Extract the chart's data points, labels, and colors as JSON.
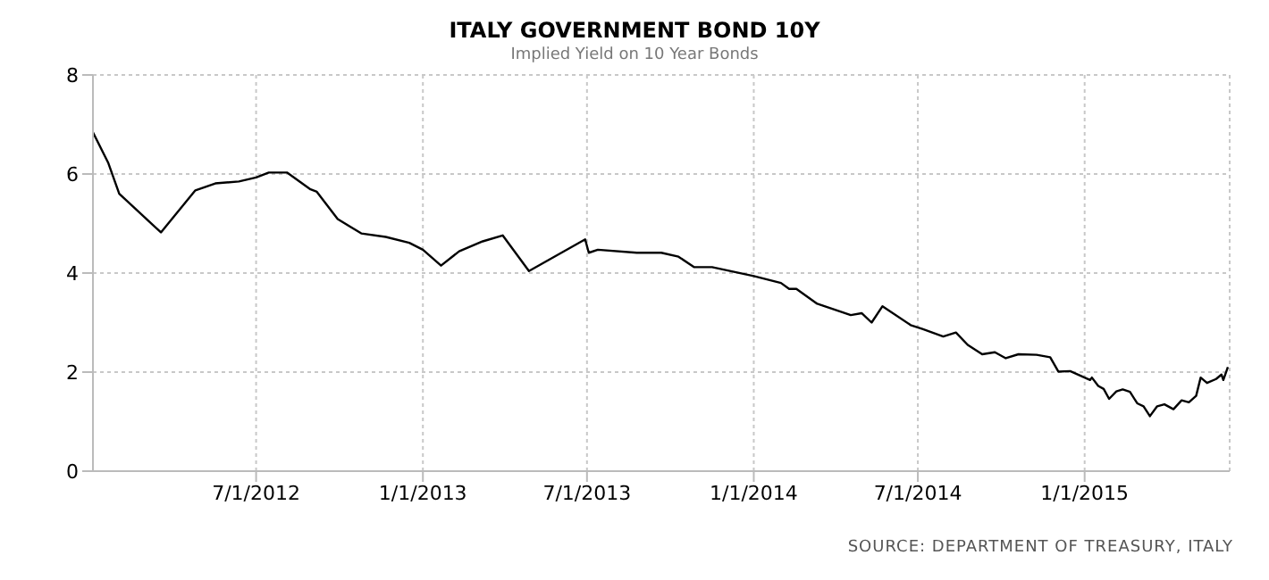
{
  "chart_data": {
    "type": "line",
    "title": "ITALY GOVERNMENT BOND 10Y",
    "subtitle": "Implied Yield on 10 Year Bonds",
    "x": [
      "2012-01-03",
      "2012-01-20",
      "2012-02-01",
      "2012-03-18",
      "2012-04-25",
      "2012-05-17",
      "2012-06-12",
      "2012-07-01",
      "2012-07-15",
      "2012-08-04",
      "2012-08-30",
      "2012-09-06",
      "2012-09-29",
      "2012-10-25",
      "2012-11-21",
      "2012-12-17",
      "2013-01-01",
      "2013-01-21",
      "2013-02-10",
      "2013-03-08",
      "2013-03-30",
      "2013-04-28",
      "2013-06-29",
      "2013-07-03",
      "2013-07-13",
      "2013-08-25",
      "2013-09-21",
      "2013-10-10",
      "2013-10-27",
      "2013-11-16",
      "2014-01-01",
      "2014-01-31",
      "2014-02-09",
      "2014-02-17",
      "2014-03-12",
      "2014-04-18",
      "2014-04-30",
      "2014-05-11",
      "2014-05-23",
      "2014-06-23",
      "2014-07-06",
      "2014-07-29",
      "2014-08-12",
      "2014-08-25",
      "2014-09-10",
      "2014-09-24",
      "2014-10-06",
      "2014-10-20",
      "2014-11-09",
      "2014-11-24",
      "2014-12-03",
      "2014-12-16",
      "2015-01-07",
      "2015-01-09",
      "2015-01-16",
      "2015-01-22",
      "2015-01-28",
      "2015-02-05",
      "2015-02-12",
      "2015-02-20",
      "2015-02-28",
      "2015-03-07",
      "2015-03-14",
      "2015-03-22",
      "2015-03-30",
      "2015-04-09",
      "2015-04-18",
      "2015-04-26",
      "2015-05-04",
      "2015-05-09",
      "2015-05-16",
      "2015-05-26",
      "2015-06-01",
      "2015-06-03",
      "2015-06-08"
    ],
    "series": [
      {
        "color": "#000000",
        "values": [
          6.84,
          6.22,
          5.6,
          4.82,
          5.67,
          5.81,
          5.85,
          5.93,
          6.03,
          6.03,
          5.69,
          5.64,
          5.09,
          4.8,
          4.73,
          4.61,
          4.47,
          4.15,
          4.44,
          4.64,
          4.76,
          4.04,
          4.68,
          4.41,
          4.47,
          4.41,
          4.41,
          4.33,
          4.12,
          4.12,
          3.94,
          3.8,
          3.68,
          3.68,
          3.38,
          3.15,
          3.19,
          3.0,
          3.33,
          2.95,
          2.87,
          2.72,
          2.8,
          2.55,
          2.36,
          2.4,
          2.28,
          2.36,
          2.35,
          2.3,
          2.01,
          2.02,
          1.84,
          1.89,
          1.72,
          1.66,
          1.46,
          1.61,
          1.65,
          1.6,
          1.37,
          1.31,
          1.11,
          1.31,
          1.35,
          1.25,
          1.43,
          1.39,
          1.52,
          1.89,
          1.78,
          1.86,
          1.95,
          1.84,
          2.1
        ]
      }
    ],
    "xlim": [
      "2012-01-03",
      "2015-06-10"
    ],
    "xticks": [
      {
        "value": "2012-07-01",
        "label": "7/1/2012"
      },
      {
        "value": "2013-01-01",
        "label": "1/1/2013"
      },
      {
        "value": "2013-07-01",
        "label": "7/1/2013"
      },
      {
        "value": "2014-01-01",
        "label": "1/1/2014"
      },
      {
        "value": "2014-07-01",
        "label": "7/1/2014"
      },
      {
        "value": "2015-01-01",
        "label": "1/1/2015"
      }
    ],
    "ylim": [
      0,
      8
    ],
    "yticks": [
      0,
      2,
      4,
      6,
      8
    ],
    "grid": true,
    "marker": "none",
    "line_style": "solid",
    "legend": false,
    "annotations": [
      "SOURCE: DEPARTMENT OF TREASURY, ITALY"
    ]
  }
}
